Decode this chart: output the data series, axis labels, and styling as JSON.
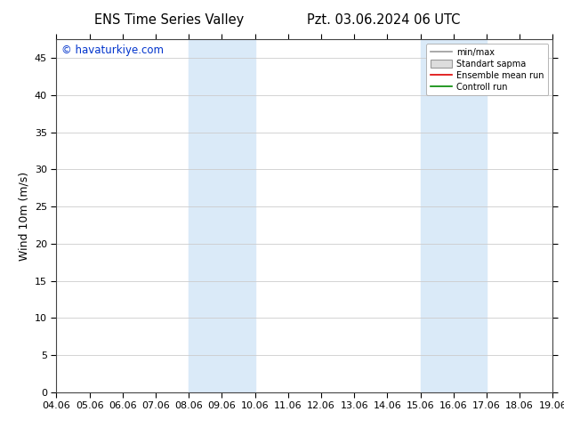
{
  "title_left": "ENS Time Series Valley",
  "title_right": "Pzt. 03.06.2024 06 UTC",
  "ylabel": "Wind 10m (m/s)",
  "watermark": "© havaturkiye.com",
  "x_labels": [
    "04.06",
    "05.06",
    "06.06",
    "07.06",
    "08.06",
    "09.06",
    "10.06",
    "11.06",
    "12.06",
    "13.06",
    "14.06",
    "15.06",
    "16.06",
    "17.06",
    "18.06",
    "19.06"
  ],
  "x_ticks": [
    0,
    1,
    2,
    3,
    4,
    5,
    6,
    7,
    8,
    9,
    10,
    11,
    12,
    13,
    14,
    15
  ],
  "ylim": [
    0,
    47.5
  ],
  "yticks": [
    0,
    5,
    10,
    15,
    20,
    25,
    30,
    35,
    40,
    45
  ],
  "shade_regions": [
    [
      4,
      5
    ],
    [
      5,
      6
    ],
    [
      11,
      12
    ],
    [
      12,
      13
    ]
  ],
  "shade_color": "#daeaf8",
  "bg_color": "#ffffff",
  "plot_bg_color": "#ffffff",
  "grid_color": "#cccccc",
  "legend_labels": [
    "min/max",
    "Standart sapma",
    "Ensemble mean run",
    "Controll run"
  ],
  "legend_line_color": "#999999",
  "legend_patch_color": "#dddddd",
  "legend_red": "#dd0000",
  "legend_green": "#008800",
  "title_fontsize": 10.5,
  "label_fontsize": 9,
  "tick_fontsize": 8,
  "watermark_color": "#0033cc",
  "watermark_fontsize": 8.5
}
